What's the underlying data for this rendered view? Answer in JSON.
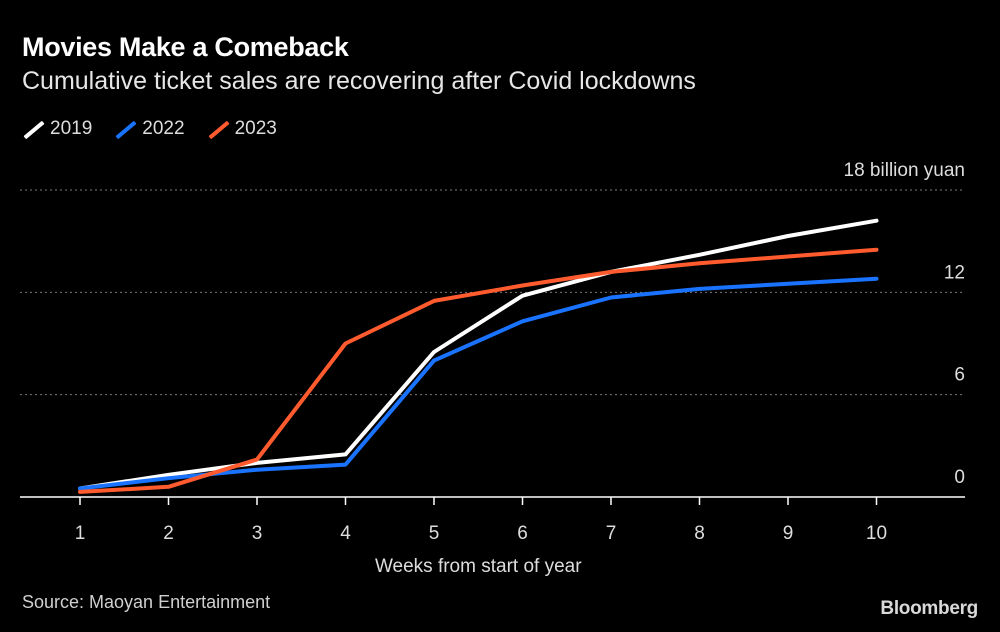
{
  "chart_data": {
    "type": "line",
    "title": "Movies Make a Comeback",
    "subtitle": "Cumulative ticket sales are recovering after Covid lockdowns",
    "xlabel": "Weeks from start of year",
    "ylabel": "18 billion yuan",
    "x": [
      1,
      2,
      3,
      4,
      5,
      6,
      7,
      8,
      9,
      10
    ],
    "x_ticks": [
      "1",
      "2",
      "3",
      "4",
      "5",
      "6",
      "7",
      "8",
      "9",
      "10"
    ],
    "y_ticks": [
      "0",
      "6",
      "12"
    ],
    "ylim": [
      0,
      18
    ],
    "grid": true,
    "series": [
      {
        "name": "2019",
        "color": "#ffffff",
        "values": [
          0.5,
          1.3,
          2.0,
          2.5,
          8.5,
          11.8,
          13.2,
          14.2,
          15.3,
          16.2
        ]
      },
      {
        "name": "2022",
        "color": "#1a73ff",
        "values": [
          0.5,
          1.1,
          1.6,
          1.9,
          8.0,
          10.3,
          11.7,
          12.2,
          12.5,
          12.8
        ]
      },
      {
        "name": "2023",
        "color": "#ff5b2e",
        "values": [
          0.3,
          0.6,
          2.2,
          9.0,
          11.5,
          12.4,
          13.2,
          13.7,
          14.1,
          14.5
        ]
      }
    ]
  },
  "source": "Source: Maoyan Entertainment",
  "brand": "Bloomberg"
}
